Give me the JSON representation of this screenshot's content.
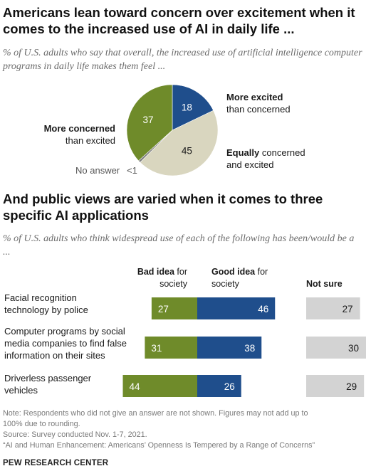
{
  "title": "Americans lean toward concern over excitement when it comes to the increased use of AI in daily life ...",
  "subtitle": "% of U.S. adults who say that overall, the increased use of artificial intelligence computer programs in daily life makes them feel ...",
  "section2_title": "And public views are varied when it comes to three specific AI applications",
  "section2_subtitle": "% of U.S. adults who think widespread use of each of the following has been/would be a ...",
  "colors": {
    "green": "#6f8b2a",
    "blue": "#1f4e8c",
    "beige": "#d9d6bf",
    "gray": "#7d7d7d",
    "notsure": "#d3d3d3"
  },
  "chart_data": [
    {
      "type": "pie",
      "slices": [
        {
          "label_bold": "More excited",
          "label_rest": "than concerned",
          "value": 18,
          "display": "18"
        },
        {
          "label_bold": "Equally",
          "label_rest": "concerned and excited",
          "value": 45,
          "display": "45"
        },
        {
          "label_bold": "",
          "label_rest": "No answer",
          "value": 0.8,
          "display": "<1"
        },
        {
          "label_bold": "More concerned",
          "label_rest": "than excited",
          "value": 37,
          "display": "37"
        }
      ]
    },
    {
      "type": "bar",
      "headers": {
        "bad_bold": "Bad idea",
        "bad_rest": "for society",
        "good_bold": "Good idea",
        "good_rest": "for society",
        "notsure": "Not sure"
      },
      "categories": [
        [
          "Facial recognition",
          "technology by police"
        ],
        [
          "Computer programs by social",
          "media companies to find false",
          "information on their sites"
        ],
        [
          "Driverless passenger",
          "vehicles"
        ]
      ],
      "series": [
        {
          "name": "Bad idea for society",
          "values": [
            27,
            31,
            44
          ]
        },
        {
          "name": "Good idea for society",
          "values": [
            46,
            38,
            26
          ]
        },
        {
          "name": "Not sure",
          "values": [
            27,
            30,
            29
          ]
        }
      ]
    }
  ],
  "note_lines": [
    "Note: Respondents who did not give an answer are not shown. Figures may not add up to",
    "100% due to rounding."
  ],
  "source": "Source: Survey conducted Nov. 1-7, 2021.",
  "report": "“AI and Human Enhancement: Americans’ Openness Is Tempered by a Range of Concerns”",
  "brand": "PEW RESEARCH CENTER"
}
